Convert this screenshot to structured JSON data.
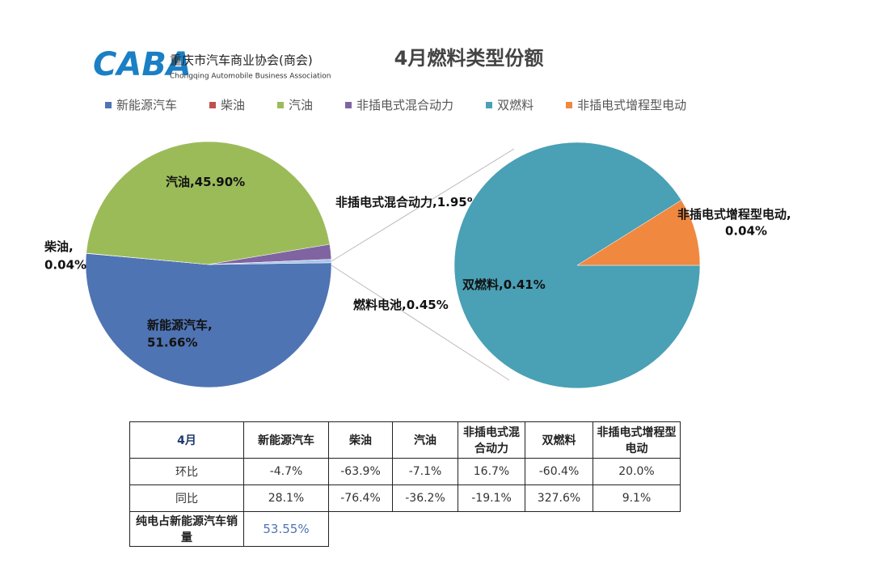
{
  "header": {
    "logo": "CABA",
    "org_cn": "重庆市汽车商业协会(商会)",
    "org_en": "Chongqing Automobile Business Association"
  },
  "chart_data": [
    {
      "type": "pie",
      "title": "4月燃料类型份额",
      "separator": ",",
      "categories": [
        "新能源汽车",
        "柴油",
        "汽油",
        "非插电式混合动力",
        "燃料电池"
      ],
      "values": [
        51.66,
        0.04,
        45.9,
        1.95,
        0.45
      ],
      "value_labels": [
        "51.66%",
        "0.04%",
        "45.90%",
        "1.95%",
        "0.45%"
      ],
      "colors": [
        "#4f74b3",
        "#c0504d",
        "#9bbb59",
        "#8064a2",
        "#a9c6e8"
      ],
      "legend": [
        {
          "name": "新能源汽车",
          "color": "#4f74b3"
        },
        {
          "name": "柴油",
          "color": "#c0504d"
        },
        {
          "name": "汽油",
          "color": "#9bbb59"
        },
        {
          "name": "非插电式混合动力",
          "color": "#8064a2"
        },
        {
          "name": "双燃料",
          "color": "#4aa0b5"
        },
        {
          "name": "非插电式增程型电动",
          "color": "#f0883f"
        }
      ]
    },
    {
      "type": "pie",
      "separator": ",",
      "categories": [
        "双燃料",
        "非插电式增程型电动"
      ],
      "values": [
        0.41,
        0.04
      ],
      "value_labels": [
        "0.41%",
        "0.04%"
      ],
      "colors": [
        "#4aa0b5",
        "#f0883f"
      ]
    }
  ],
  "table": {
    "header": [
      "4月",
      "新能源汽车",
      "柴油",
      "汽油",
      "非插电式混合动力",
      "双燃料",
      "非插电式增程型电动"
    ],
    "rows": [
      [
        "环比",
        "-4.7%",
        "-63.9%",
        "-7.1%",
        "16.7%",
        "-60.4%",
        "20.0%"
      ],
      [
        "同比",
        "28.1%",
        "-76.4%",
        "-36.2%",
        "-19.1%",
        "327.6%",
        "9.1%"
      ],
      [
        "纯电占新能源汽车销量",
        "53.55%"
      ]
    ]
  }
}
